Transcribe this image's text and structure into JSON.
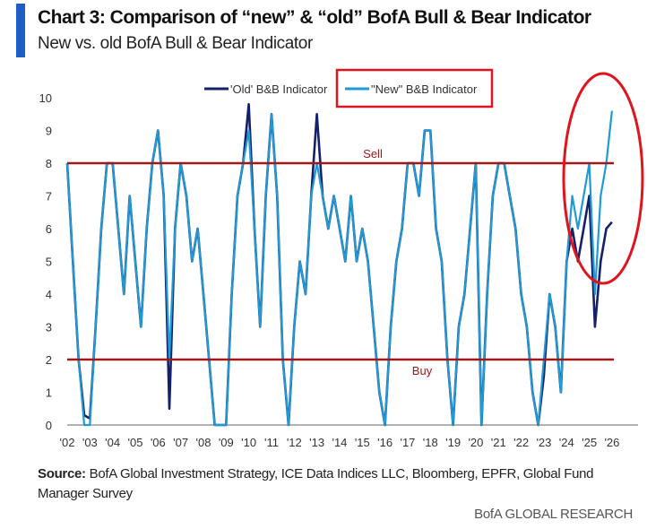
{
  "header": {
    "title": "Chart 3: Comparison of “new” & “old” BofA Bull & Bear Indicator",
    "subtitle": "New vs. old BofA Bull & Bear Indicator"
  },
  "footer": {
    "source_label": "Source:",
    "source_text": " BofA Global Investment Strategy, ICE Data Indices LLC, Bloomberg, EPFR, Global Fund Manager Survey",
    "brand": "BofA GLOBAL RESEARCH"
  },
  "colors": {
    "old": "#14206b",
    "new": "#1e9ad6",
    "threshold": "#a01818",
    "annotation": "#e0141e",
    "accent_bar": "#1f5fc4"
  },
  "chart_data": {
    "type": "line",
    "title": "",
    "xlabel": "",
    "ylabel": "",
    "ylim": [
      0,
      10
    ],
    "xlim": [
      2002,
      2026.5
    ],
    "yticks": [
      "0",
      "1",
      "2",
      "3",
      "4",
      "5",
      "6",
      "7",
      "8",
      "9",
      "10"
    ],
    "xticks": [
      "'02",
      "'03",
      "'04",
      "'05",
      "'06",
      "'07",
      "'08",
      "'09",
      "'10",
      "'11",
      "'12",
      "'13",
      "'14",
      "'15",
      "'16",
      "'17",
      "'18",
      "'19",
      "'20",
      "'21",
      "'22",
      "'23",
      "'24",
      "'25",
      "'26"
    ],
    "legend": {
      "placement": "top-center",
      "entries": [
        "'Old' B&B Indicator",
        "\"New\" B&B Indicator"
      ]
    },
    "grid": false,
    "thresholds": [
      {
        "label": "Sell",
        "value": 8
      },
      {
        "label": "Buy",
        "value": 2
      }
    ],
    "x_start": 2002,
    "x_step": 0.25,
    "series": [
      {
        "name": "'Old' B&B Indicator",
        "values": [
          8,
          5,
          2,
          0.3,
          0.2,
          3,
          6,
          8,
          8,
          6,
          4,
          7,
          5,
          3,
          6,
          8,
          9,
          7,
          0.5,
          6,
          8,
          7,
          5,
          6,
          4,
          2,
          0,
          0,
          0,
          4,
          7,
          8,
          9.8,
          6,
          3,
          7,
          9.5,
          7,
          2,
          0,
          3,
          5,
          4,
          7,
          9.5,
          7,
          6,
          7,
          6,
          5,
          7,
          5,
          6,
          5,
          3,
          1,
          0,
          3,
          5,
          6,
          8,
          8,
          7,
          9,
          9,
          6,
          5,
          2,
          0,
          3,
          4,
          6,
          8,
          0,
          4,
          7,
          8,
          8,
          7,
          6,
          4,
          3,
          1,
          0,
          1.5,
          4,
          3,
          1,
          5,
          6,
          5,
          6,
          7,
          3,
          5,
          6,
          6.2
        ]
      },
      {
        "name": "\"New\" B&B Indicator",
        "values": [
          8,
          5,
          2,
          0,
          0,
          3,
          6,
          8,
          8,
          6,
          4,
          7,
          5,
          3,
          6,
          8,
          9,
          7,
          2,
          6,
          8,
          7,
          5,
          6,
          4,
          2,
          0,
          0,
          0,
          4,
          7,
          8,
          9,
          6,
          3,
          7,
          9.5,
          7,
          2,
          0,
          3,
          5,
          4,
          7,
          8,
          7,
          6,
          7,
          6,
          5,
          7,
          5,
          6,
          5,
          3,
          1,
          0,
          3,
          5,
          6,
          8,
          8,
          7,
          9,
          9,
          6,
          5,
          2,
          0,
          3,
          4,
          6,
          8,
          0,
          4,
          7,
          8,
          8,
          7,
          6,
          4,
          3,
          1,
          0,
          2,
          4,
          3,
          1,
          5,
          7,
          6,
          7,
          8,
          4,
          7,
          8,
          9.6
        ]
      }
    ]
  }
}
